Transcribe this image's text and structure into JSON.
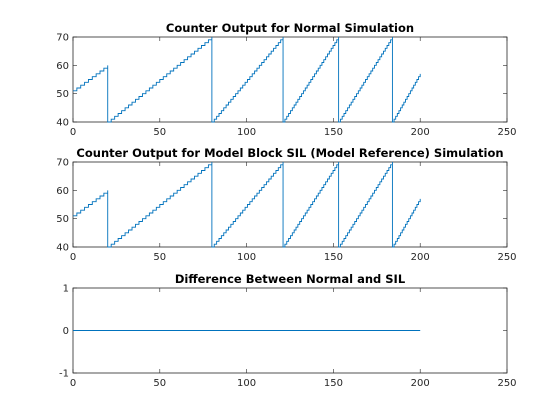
{
  "figure": {
    "background": "#ffffff",
    "line_color": "#0072bd"
  },
  "chart_data": [
    {
      "type": "line",
      "title": "Counter Output for Normal Simulation",
      "xlabel": "",
      "ylabel": "",
      "xlim": [
        0,
        250
      ],
      "ylim": [
        40,
        70
      ],
      "xticks": [
        0,
        50,
        100,
        150,
        200,
        250
      ],
      "yticks": [
        40,
        50,
        60,
        70
      ],
      "grid": false,
      "step": true,
      "series": [
        {
          "color": "#0072bd",
          "x": [
            0,
            20,
            20,
            80,
            80,
            121,
            121,
            153,
            153,
            184,
            184,
            200
          ],
          "y": [
            51,
            60,
            40,
            70,
            40,
            70,
            40,
            70,
            40,
            70,
            40,
            57
          ]
        }
      ]
    },
    {
      "type": "line",
      "title": "Counter Output for Model Block SIL (Model Reference) Simulation",
      "xlabel": "",
      "ylabel": "",
      "xlim": [
        0,
        250
      ],
      "ylim": [
        40,
        70
      ],
      "xticks": [
        0,
        50,
        100,
        150,
        200,
        250
      ],
      "yticks": [
        40,
        50,
        60,
        70
      ],
      "grid": false,
      "step": true,
      "series": [
        {
          "color": "#0072bd",
          "x": [
            0,
            20,
            20,
            80,
            80,
            121,
            121,
            153,
            153,
            184,
            184,
            200
          ],
          "y": [
            51,
            60,
            40,
            70,
            40,
            70,
            40,
            70,
            40,
            70,
            40,
            57
          ]
        }
      ]
    },
    {
      "type": "line",
      "title": "Difference Between Normal and SIL",
      "xlabel": "",
      "ylabel": "",
      "xlim": [
        0,
        250
      ],
      "ylim": [
        -1,
        1
      ],
      "xticks": [
        0,
        50,
        100,
        150,
        200,
        250
      ],
      "yticks": [
        -1,
        0,
        1
      ],
      "grid": false,
      "step": false,
      "series": [
        {
          "color": "#0072bd",
          "x": [
            0,
            200
          ],
          "y": [
            0,
            0
          ]
        }
      ]
    }
  ]
}
